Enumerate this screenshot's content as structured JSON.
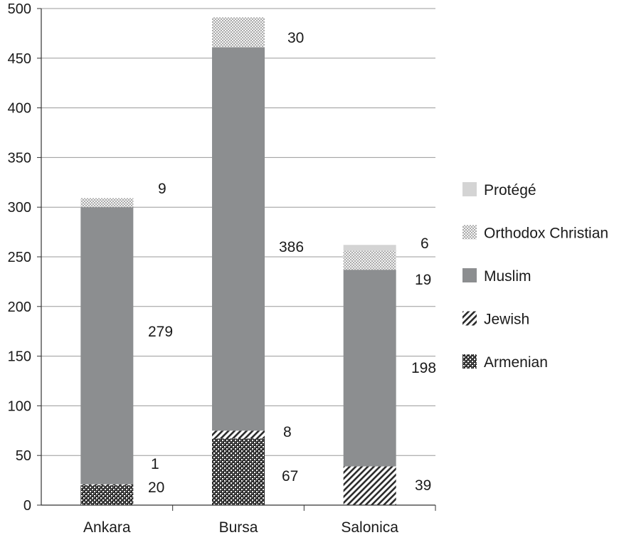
{
  "chart_data": {
    "type": "bar",
    "stacked": true,
    "categories": [
      "Ankara",
      "Bursa",
      "Salonica"
    ],
    "series": [
      {
        "name": "Armenian",
        "values": [
          20,
          67,
          0
        ],
        "labels": [
          "20",
          "67",
          ""
        ],
        "pattern": "checker"
      },
      {
        "name": "Jewish",
        "values": [
          1,
          8,
          39
        ],
        "labels": [
          "1",
          "8",
          "39"
        ],
        "pattern": "diagonal"
      },
      {
        "name": "Muslim",
        "values": [
          279,
          386,
          198
        ],
        "labels": [
          "279",
          "386",
          "198"
        ],
        "pattern": "solid",
        "color": "#8c8e90"
      },
      {
        "name": "Orthodox Christian",
        "values": [
          9,
          30,
          19
        ],
        "labels": [
          "9",
          "30",
          "19"
        ],
        "pattern": "dots"
      },
      {
        "name": "Protégé",
        "values": [
          0,
          0,
          6
        ],
        "labels": [
          "",
          "",
          "6"
        ],
        "pattern": "solid",
        "color": "#d4d4d4"
      }
    ],
    "legend_order": [
      "Protégé",
      "Orthodox Christian",
      "Muslim",
      "Jewish",
      "Armenian"
    ],
    "ylim": [
      0,
      500
    ],
    "yticks": [
      0,
      50,
      100,
      150,
      200,
      250,
      300,
      350,
      400,
      450,
      500
    ],
    "grid": true,
    "legend_position": "right",
    "title": "",
    "xlabel": "",
    "ylabel": ""
  }
}
